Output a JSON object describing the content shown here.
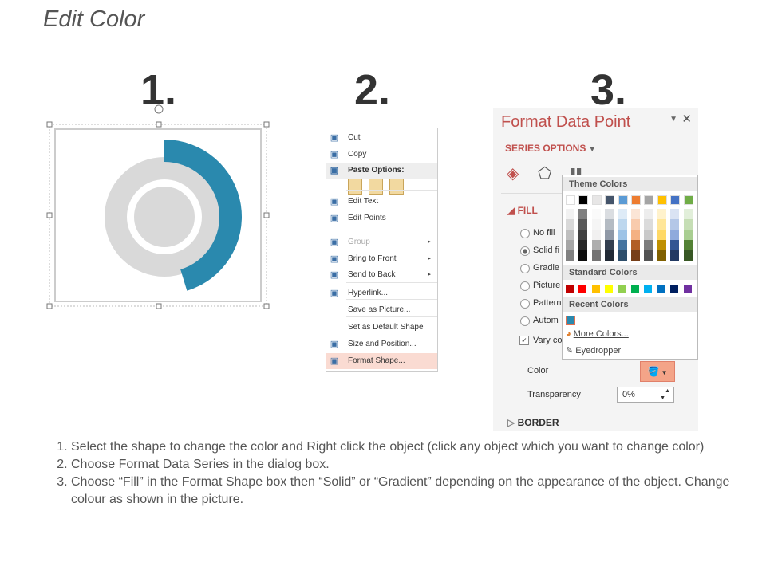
{
  "title": "Edit Color",
  "steps_numbers": [
    "1.",
    "2.",
    "3."
  ],
  "chart_colors": {
    "accent": "#2a89ae",
    "ring": "#d9d9d9"
  },
  "context_menu": {
    "items": [
      {
        "label": "Cut",
        "icon": "scissors-icon"
      },
      {
        "label": "Copy",
        "icon": "copy-icon"
      },
      {
        "label": "Paste Options:",
        "icon": "paste-icon"
      },
      {
        "label": "Edit Text",
        "icon": "edit-text-icon"
      },
      {
        "label": "Edit Points",
        "icon": "edit-points-icon"
      },
      {
        "label": "Group",
        "icon": "group-icon",
        "submenu": "▸"
      },
      {
        "label": "Bring to Front",
        "icon": "bring-front-icon",
        "submenu": "▸"
      },
      {
        "label": "Send to Back",
        "icon": "send-back-icon",
        "submenu": "▸"
      },
      {
        "label": "Hyperlink...",
        "icon": "hyperlink-icon"
      },
      {
        "label": "Save as Picture..."
      },
      {
        "label": "Set as Default Shape"
      },
      {
        "label": "Size and Position...",
        "icon": "size-position-icon"
      },
      {
        "label": "Format Shape...",
        "icon": "format-shape-icon"
      }
    ]
  },
  "panel": {
    "title": "Format Data Point",
    "series_options": "SERIES OPTIONS",
    "fill": "FILL",
    "options": [
      "No fill",
      "Solid fi",
      "Gradie",
      "Picture",
      "Pattern",
      "Autom"
    ],
    "vary": "Vary co",
    "color_label": "Color",
    "transparency_label": "Transparency",
    "transparency_value": "0%",
    "border": "BORDER"
  },
  "palette": {
    "theme_label": "Theme Colors",
    "standard_label": "Standard Colors",
    "recent_label": "Recent Colors",
    "more_colors": "More Colors...",
    "eyedropper": "Eyedropper",
    "theme": [
      "#ffffff",
      "#000000",
      "#e7e6e6",
      "#44546a",
      "#5b9bd5",
      "#ed7d31",
      "#a5a5a5",
      "#ffc000",
      "#4472c4",
      "#70ad47"
    ],
    "standard": [
      "#c00000",
      "#ff0000",
      "#ffc000",
      "#ffff00",
      "#92d050",
      "#00b050",
      "#00b0f0",
      "#0070c0",
      "#002060",
      "#7030a0"
    ],
    "recent": [
      "#2a89ae"
    ]
  },
  "instructions": [
    "Select the shape to change the color and Right click the object (click any object which you want to change color)",
    "Choose Format Data Series in the dialog box.",
    "Choose “Fill” in the Format Shape box then “Solid” or “Gradient” depending on the appearance of the object. Change colour as shown in the picture."
  ]
}
